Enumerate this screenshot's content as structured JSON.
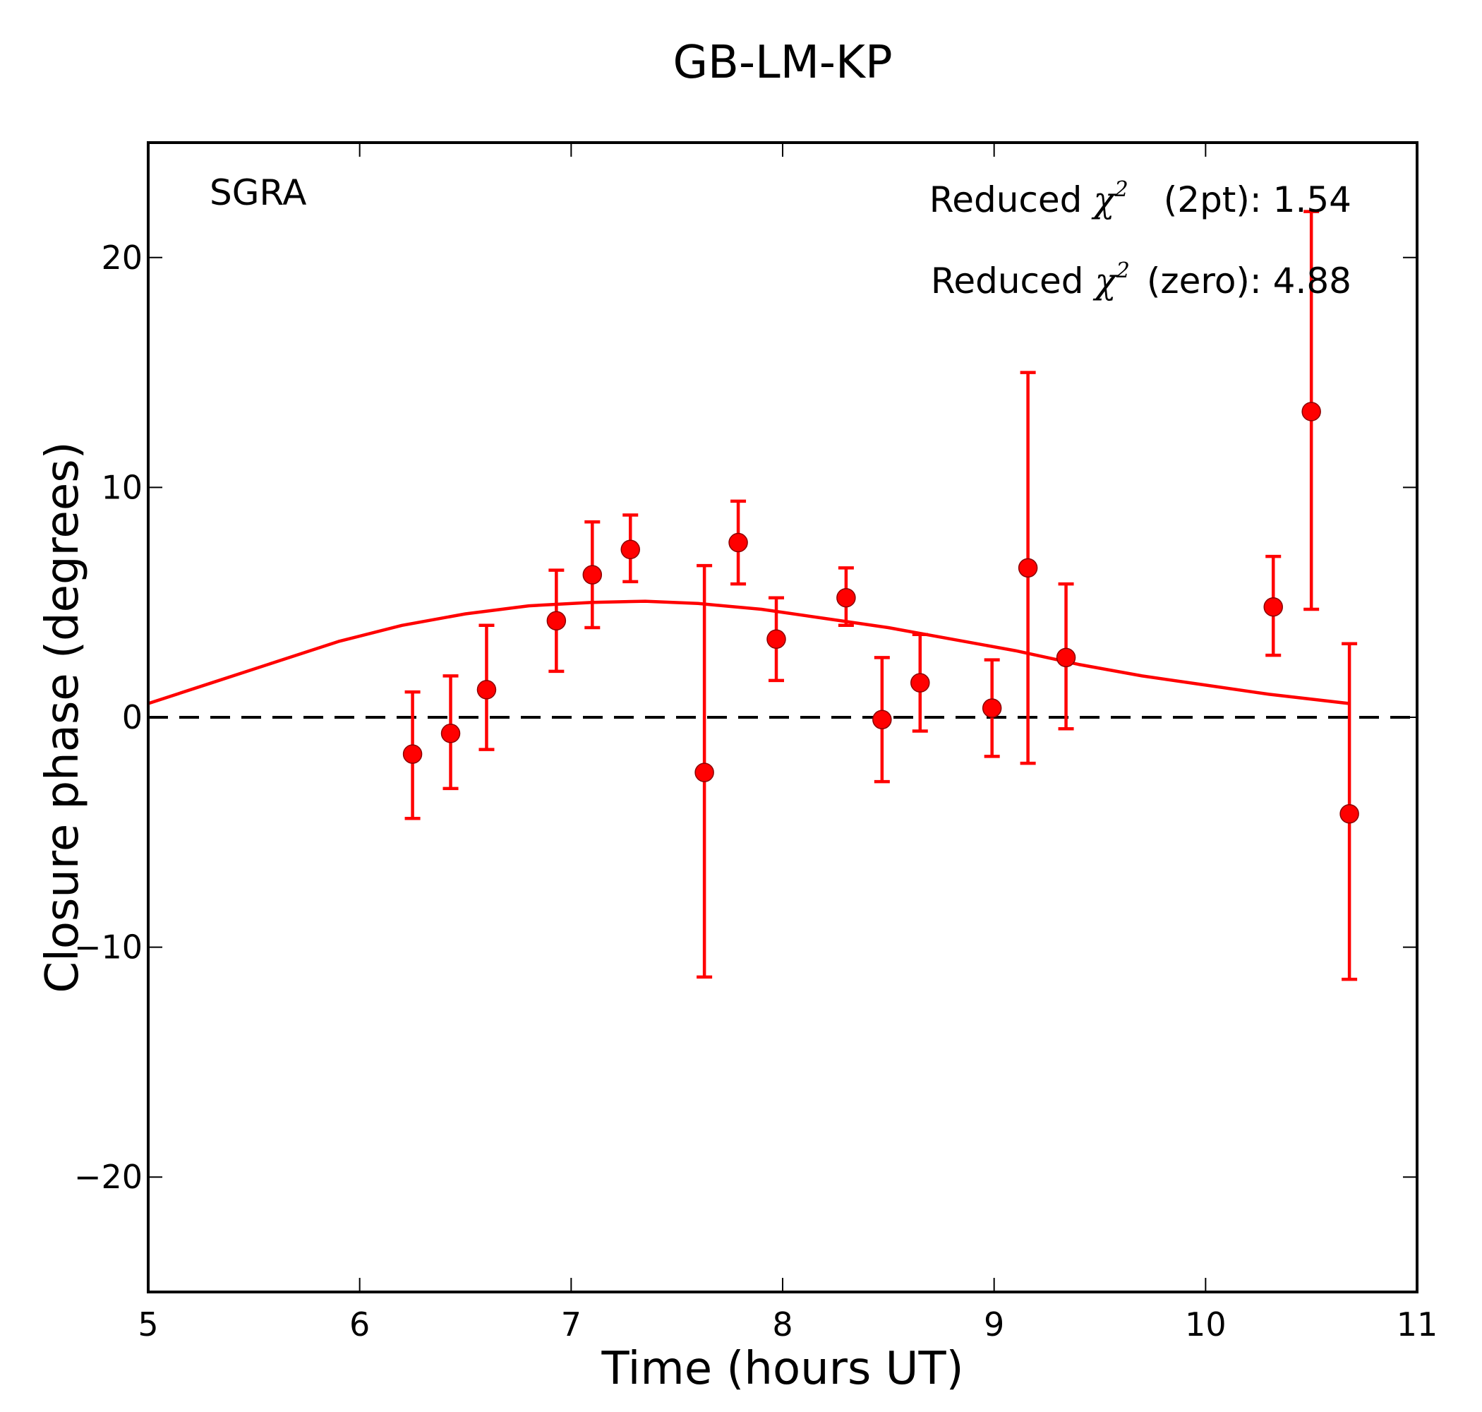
{
  "chart_data": {
    "type": "scatter",
    "title": "GB-LM-KP",
    "xlabel": "Time (hours UT)",
    "ylabel": "Closure phase (degrees)",
    "xlim": [
      5,
      11
    ],
    "ylim": [
      -25,
      25
    ],
    "xticks": [
      5,
      6,
      7,
      8,
      9,
      10,
      11
    ],
    "yticks": [
      -20,
      -10,
      0,
      10,
      20
    ],
    "xtick_labels": [
      "5",
      "6",
      "7",
      "8",
      "9",
      "10",
      "11"
    ],
    "ytick_labels": [
      "−20",
      "−10",
      "0",
      "10",
      "20"
    ],
    "grid": false,
    "source_label": "SGRA",
    "annotations": [
      {
        "prefix": "Reduced",
        "symbol": "χ",
        "superscript": "2",
        "suffix": "(2pt): 1.54"
      },
      {
        "prefix": "Reduced",
        "symbol": "χ",
        "superscript": "2",
        "suffix": "(zero): 4.88"
      }
    ],
    "series": [
      {
        "name": "closure phase",
        "color": "#ff0000",
        "x": [
          6.25,
          6.43,
          6.6,
          6.93,
          7.1,
          7.28,
          7.63,
          7.79,
          7.97,
          8.3,
          8.47,
          8.65,
          8.99,
          9.16,
          9.34,
          10.32,
          10.5,
          10.68
        ],
        "y": [
          -1.6,
          -0.7,
          1.2,
          4.2,
          6.2,
          7.3,
          -2.4,
          7.6,
          3.4,
          5.2,
          -0.1,
          1.5,
          0.4,
          6.5,
          2.6,
          4.8,
          13.3,
          -4.2
        ],
        "yerr_low": [
          2.8,
          2.4,
          2.6,
          2.2,
          2.3,
          1.4,
          8.9,
          1.8,
          1.8,
          1.2,
          2.7,
          2.1,
          2.1,
          8.5,
          3.1,
          2.1,
          8.6,
          7.2
        ],
        "yerr_high": [
          2.7,
          2.5,
          2.8,
          2.2,
          2.3,
          1.5,
          9.0,
          1.8,
          1.8,
          1.3,
          2.7,
          2.1,
          2.1,
          8.5,
          3.2,
          2.2,
          8.7,
          7.4
        ]
      },
      {
        "name": "model",
        "color": "#ff0000",
        "style": "solid",
        "x": [
          5.0,
          5.3,
          5.6,
          5.9,
          6.2,
          6.5,
          6.8,
          7.1,
          7.35,
          7.6,
          7.9,
          8.2,
          8.5,
          8.8,
          9.1,
          9.4,
          9.7,
          10.0,
          10.3,
          10.68
        ],
        "y": [
          0.6,
          1.5,
          2.4,
          3.3,
          4.0,
          4.5,
          4.85,
          5.0,
          5.05,
          4.95,
          4.7,
          4.3,
          3.9,
          3.4,
          2.9,
          2.3,
          1.8,
          1.4,
          1.0,
          0.6
        ]
      },
      {
        "name": "zero",
        "color": "#000000",
        "style": "dashed",
        "x": [
          5,
          11
        ],
        "y": [
          0,
          0
        ]
      }
    ]
  }
}
